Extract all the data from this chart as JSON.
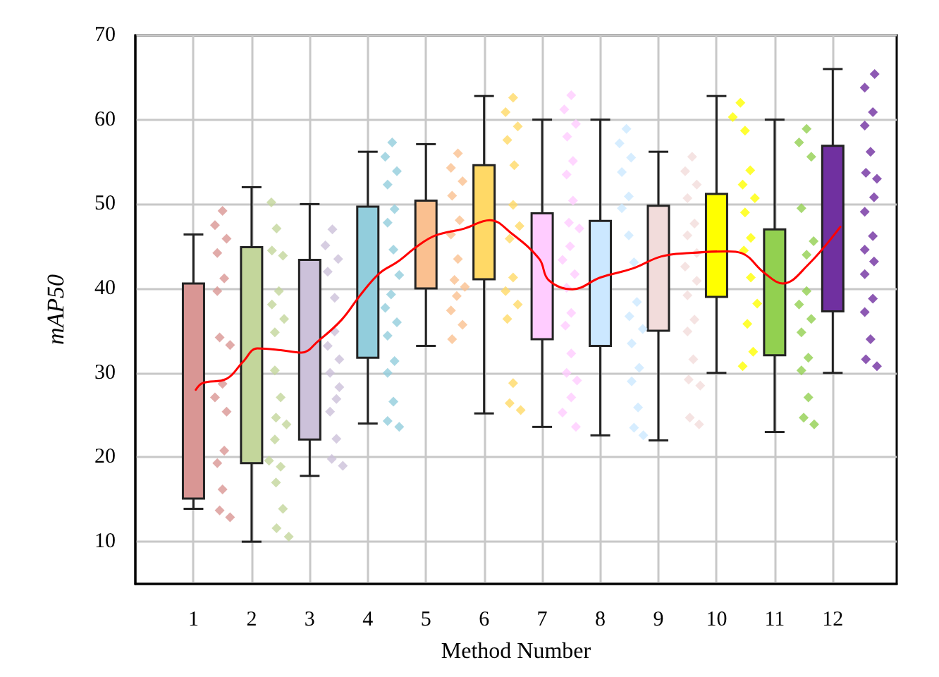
{
  "chart_data": {
    "type": "bar",
    "xlabel": "Method Number",
    "ylabel": "mAP50",
    "xlim": [
      0,
      13.1
    ],
    "xticks": [
      1,
      2,
      3,
      4,
      5,
      6,
      7,
      8,
      9,
      10,
      11,
      12
    ],
    "ylim": [
      5,
      70
    ],
    "yticks": [
      10,
      20,
      30,
      40,
      50,
      60,
      70
    ],
    "grid": true,
    "series": [
      {
        "x": [
          1,
          2,
          3,
          4,
          5,
          6,
          7,
          8,
          9,
          10,
          11,
          12
        ],
        "base": [
          15.1,
          19.3,
          22.1,
          31.8,
          40.0,
          41.1,
          34.0,
          33.2,
          35.0,
          39.0,
          32.1,
          37.3
        ],
        "values": [
          25.5,
          25.6,
          21.3,
          17.9,
          10.4,
          13.5,
          14.9,
          14.8,
          14.8,
          12.2,
          14.9,
          19.6
        ],
        "errors": [
          [
            13.9,
            46.4
          ],
          [
            10,
            52
          ],
          [
            17.8,
            50
          ],
          [
            24,
            56.2
          ],
          [
            33.2,
            57.1
          ],
          [
            25.2,
            62.8
          ],
          [
            23.6,
            60
          ],
          [
            22.6,
            60
          ],
          [
            22,
            56.2
          ],
          [
            30,
            62.8
          ],
          [
            23,
            60
          ],
          [
            30,
            66
          ]
        ],
        "colors": [
          "#d99694",
          "#c3d69b",
          "#ccc1da",
          "#92cddc",
          "#fac090",
          "#ffd966",
          "#ffccff",
          "#cce8ff",
          "#f2dcdb",
          "#ffff00",
          "#92d050",
          "#7030a0"
        ]
      },
      {
        "type": "scatter",
        "marker": "diamond",
        "color": "#d99694",
        "x": [
          1.5,
          1.37,
          1.57,
          1.41,
          1.53,
          1.41,
          1.45,
          1.63,
          1.5,
          1.37,
          1.57,
          1.53,
          1.41,
          1.5,
          1.45,
          1.63
        ],
        "values": [
          49.2,
          47.5,
          45.9,
          44.2,
          41.2,
          39.7,
          34.2,
          33.3,
          28.7,
          27.1,
          25.4,
          20.8,
          19.3,
          16.2,
          13.7,
          12.9
        ]
      },
      {
        "type": "scatter",
        "marker": "diamond",
        "color": "#c3d69b",
        "x": [
          2.34,
          2.43,
          2.35,
          2.54,
          2.47,
          2.35,
          2.56,
          2.4,
          2.4,
          2.5,
          2.42,
          2.6,
          2.4,
          2.3,
          2.5,
          2.42,
          2.54,
          2.43,
          2.64
        ],
        "values": [
          50.2,
          47.1,
          44.5,
          43.9,
          39.7,
          38.1,
          36.4,
          34.8,
          30.3,
          27.1,
          24.7,
          23.9,
          22.1,
          19.6,
          18.9,
          17,
          13.9,
          11.6,
          10.6
        ]
      },
      {
        "type": "scatter",
        "marker": "diamond",
        "color": "#ccc1da",
        "x": [
          3.39,
          3.27,
          3.49,
          3.31,
          3.43,
          3.43,
          3.31,
          3.51,
          3.35,
          3.51,
          3.46,
          3.35,
          3.46,
          3.38,
          3.57
        ],
        "values": [
          47,
          45.1,
          43.5,
          42,
          38.9,
          34.9,
          33.2,
          31.6,
          30,
          28.3,
          26.9,
          25.4,
          22.2,
          19.8,
          19
        ]
      },
      {
        "type": "scatter",
        "marker": "diamond",
        "color": "#92cddc",
        "x": [
          4.42,
          4.3,
          4.5,
          4.34,
          4.46,
          4.34,
          4.44,
          4.54,
          4.4,
          4.3,
          4.5,
          4.34,
          4.46,
          4.34,
          4.44,
          4.34,
          4.54
        ],
        "values": [
          57.3,
          55.6,
          53.9,
          52.3,
          49.4,
          47.8,
          44.6,
          41.6,
          39.3,
          37.7,
          36,
          34.4,
          31.4,
          30,
          26.6,
          24.3,
          23.6
        ]
      },
      {
        "type": "scatter",
        "marker": "diamond",
        "color": "#fac090",
        "x": [
          5.55,
          5.43,
          5.63,
          5.45,
          5.58,
          5.43,
          5.55,
          5.49,
          5.67,
          5.53,
          5.43,
          5.63,
          5.45
        ],
        "values": [
          56,
          54.3,
          52.7,
          51,
          48.1,
          46.4,
          43.5,
          41,
          40.2,
          39.1,
          37.4,
          35.7,
          34
        ]
      },
      {
        "type": "scatter",
        "marker": "diamond",
        "color": "#ffd966",
        "x": [
          6.5,
          6.37,
          6.58,
          6.4,
          6.52,
          6.5,
          6.61,
          6.44,
          6.5,
          6.37,
          6.58,
          6.4,
          6.5,
          6.44,
          6.63
        ],
        "values": [
          62.6,
          60.9,
          59.2,
          57.6,
          54.6,
          49.9,
          47.4,
          45.9,
          41.3,
          39.7,
          38.1,
          36.4,
          28.8,
          26.4,
          25.6
        ]
      },
      {
        "type": "scatter",
        "marker": "diamond",
        "color": "#ffccff",
        "x": [
          7.5,
          7.38,
          7.58,
          7.43,
          7.53,
          7.42,
          7.53,
          7.46,
          7.64,
          7.48,
          7.35,
          7.56,
          7.42,
          7.5,
          7.4,
          7.5,
          7.42,
          7.6,
          7.5,
          7.35,
          7.58
        ],
        "values": [
          62.9,
          61.2,
          59.5,
          58,
          55.1,
          53.5,
          50.4,
          47.8,
          47.1,
          45,
          43.4,
          41.7,
          40.1,
          37.1,
          35.6,
          32.3,
          30,
          29.1,
          27.1,
          25.3,
          23.6
        ]
      },
      {
        "type": "scatter",
        "marker": "diamond",
        "color": "#cce8ff",
        "x": [
          8.45,
          8.33,
          8.53,
          8.37,
          8.49,
          8.37,
          8.49,
          8.58,
          8.63,
          8.5,
          8.73,
          8.54,
          8.67,
          8.54,
          8.65,
          8.58,
          8.74
        ],
        "values": [
          58.9,
          57.2,
          55.5,
          53.8,
          50.9,
          49.5,
          46.3,
          43.1,
          38.4,
          36.7,
          35.2,
          33.5,
          30.6,
          29,
          25.9,
          23.5,
          22.6
        ]
      },
      {
        "type": "scatter",
        "marker": "diamond",
        "color": "#f2dcdb",
        "x": [
          9.58,
          9.46,
          9.66,
          9.5,
          9.62,
          9.5,
          9.66,
          9.46,
          9.66,
          9.5,
          9.62,
          9.5,
          9.6,
          9.52,
          9.72,
          9.54,
          9.7
        ],
        "values": [
          55.6,
          53.9,
          52.3,
          50.7,
          47.7,
          46.3,
          44.2,
          42.6,
          40.9,
          39.2,
          36.3,
          34.9,
          31.6,
          29.2,
          28.5,
          24.7,
          23.9
        ]
      },
      {
        "type": "scatter",
        "marker": "diamond",
        "color": "#ffff00",
        "x": [
          10.41,
          10.28,
          10.49,
          10.58,
          10.45,
          10.66,
          10.49,
          10.59,
          10.47,
          10.59,
          10.7,
          10.53,
          10.63,
          10.45
        ],
        "values": [
          62,
          60.3,
          58.7,
          54,
          52.3,
          50.7,
          49,
          46,
          44.5,
          41.3,
          38.2,
          35.8,
          32.5,
          30.8
        ]
      },
      {
        "type": "scatter",
        "marker": "diamond",
        "color": "#92d050",
        "x": [
          11.55,
          11.42,
          11.63,
          11.46,
          11.67,
          11.55,
          11.55,
          11.42,
          11.63,
          11.46,
          11.58,
          11.46,
          11.58,
          11.5,
          11.68
        ],
        "values": [
          58.9,
          57.3,
          55.6,
          49.5,
          45.6,
          44,
          39.7,
          38.1,
          36.4,
          34.8,
          31.8,
          30.3,
          27.1,
          24.7,
          23.9
        ]
      },
      {
        "type": "scatter",
        "marker": "diamond",
        "color": "#7030a0",
        "x": [
          12.72,
          12.55,
          12.69,
          12.55,
          12.65,
          12.57,
          12.76,
          12.71,
          12.55,
          12.69,
          12.55,
          12.71,
          12.55,
          12.69,
          12.55,
          12.65,
          12.57,
          12.76
        ],
        "values": [
          65.4,
          63.8,
          60.9,
          59.3,
          56.2,
          53.7,
          53,
          50.8,
          49.1,
          46.2,
          44.6,
          43.2,
          41.7,
          38.8,
          37.2,
          34,
          31.6,
          30.8
        ]
      },
      {
        "type": "line",
        "marker": "none",
        "color": "#ff0000",
        "x": [
          1.04,
          1.16,
          1.57,
          1.85,
          2.1,
          2.5,
          2.86,
          3.15,
          3.55,
          3.88,
          4.2,
          4.52,
          4.85,
          5.17,
          5.66,
          6.1,
          6.46,
          6.95,
          7.11,
          7.52,
          8,
          8.57,
          9.05,
          9.54,
          10.19,
          10.43,
          10.83,
          11.14,
          11.56,
          12.13
        ],
        "values": [
          28,
          28.8,
          29.3,
          31.3,
          32.9,
          32.7,
          32.4,
          33.8,
          36.3,
          39.3,
          41.8,
          43.2,
          45,
          46.3,
          47.1,
          48.1,
          46.6,
          43.5,
          41,
          39.9,
          41.3,
          42.4,
          43.8,
          44.2,
          44.4,
          44.2,
          41.8,
          40.6,
          42.7,
          47.3
        ]
      }
    ]
  }
}
